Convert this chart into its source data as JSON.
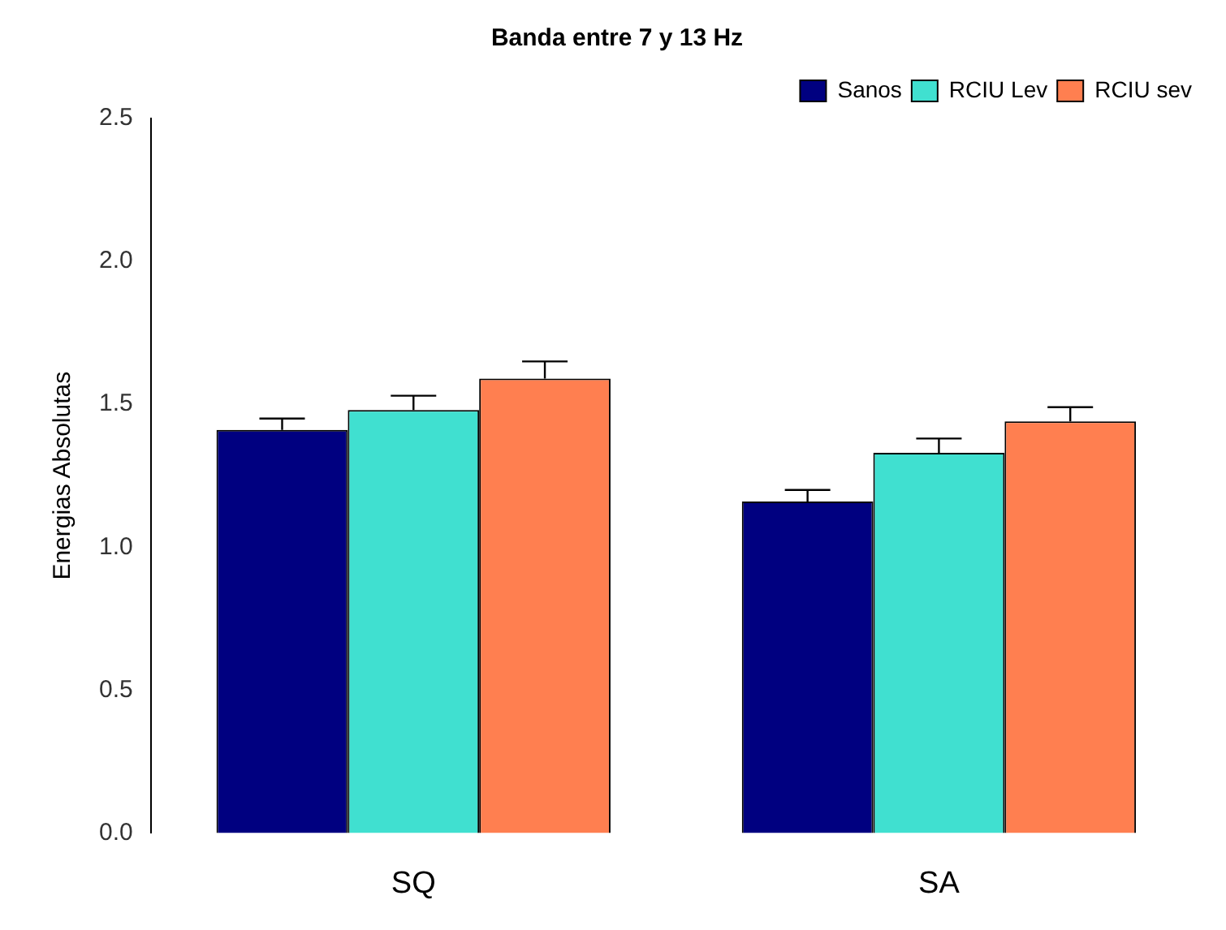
{
  "chart_data": {
    "type": "bar",
    "title": "Banda entre 7 y 13 Hz",
    "ylabel": "Energias Absolutas",
    "categories": [
      "SQ",
      "SA"
    ],
    "series": [
      {
        "name": "Sanos",
        "color": "#000080",
        "values": [
          1.41,
          1.16
        ],
        "errors": [
          [
            1.41,
            1.45
          ],
          [
            1.16,
            1.2
          ]
        ]
      },
      {
        "name": "RCIU Lev",
        "color": "#40e0d0",
        "values": [
          1.48,
          1.33
        ],
        "errors": [
          [
            1.48,
            1.53
          ],
          [
            1.33,
            1.38
          ]
        ]
      },
      {
        "name": "RCIU sev",
        "color": "#ff7f50",
        "values": [
          1.59,
          1.44
        ],
        "errors": [
          [
            1.59,
            1.65
          ],
          [
            1.44,
            1.49
          ]
        ]
      }
    ],
    "ylim": [
      0,
      2.5
    ],
    "yticks": [
      {
        "value": 0,
        "label": "0.0"
      },
      0.5,
      {
        "value": 1,
        "label": "1.0"
      },
      1.5,
      {
        "value": 2,
        "label": "2.0"
      },
      2.5
    ],
    "grid": false,
    "legend": "top right"
  }
}
